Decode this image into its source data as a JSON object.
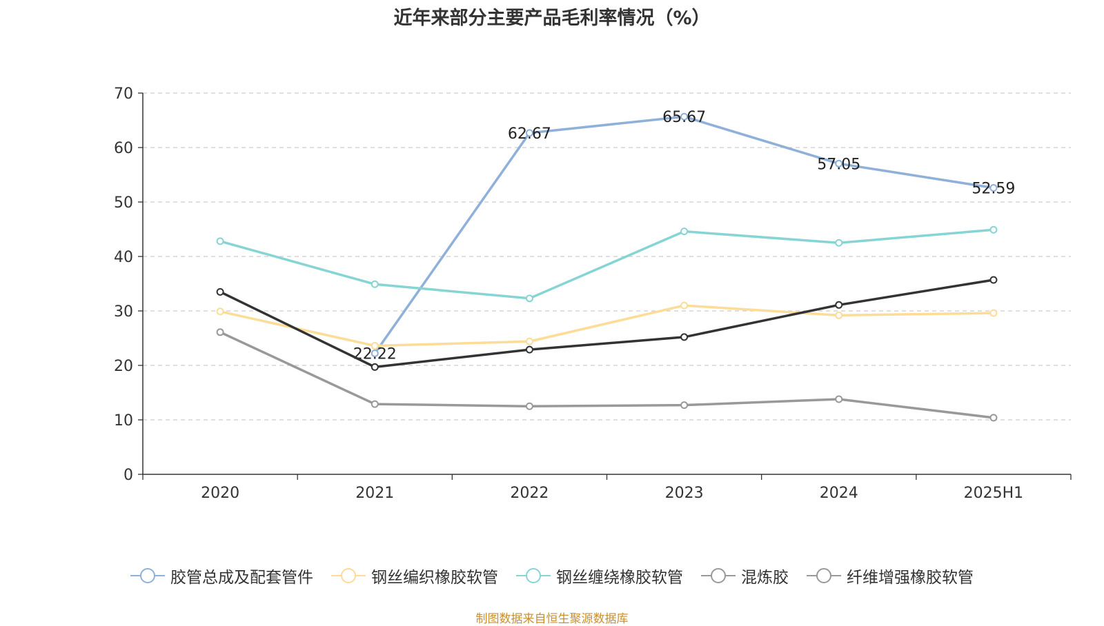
{
  "chart_data": {
    "type": "line",
    "title": "近年来部分主要产品毛利率情况（%）",
    "categories": [
      "2020",
      "2021",
      "2022",
      "2023",
      "2024",
      "2025H1"
    ],
    "ylim": [
      0,
      70
    ],
    "yticks": [
      0,
      10,
      20,
      30,
      40,
      50,
      60,
      70
    ],
    "grid": true,
    "legend_position": "bottom",
    "series": [
      {
        "name": "胶管总成及配套管件",
        "color": "#8fb0d9",
        "legend_marker": "#8fb0d9",
        "values": [
          null,
          22.22,
          62.67,
          65.67,
          57.05,
          52.59
        ],
        "show_labels": true
      },
      {
        "name": "钢丝编织橡胶软管",
        "color": "#fcdc97",
        "legend_marker": "#fcdc97",
        "values": [
          29.9,
          23.6,
          24.4,
          31.0,
          29.2,
          29.6
        ],
        "show_labels": false
      },
      {
        "name": "钢丝缠绕橡胶软管",
        "color": "#86d4d4",
        "legend_marker": "#86d4d4",
        "values": [
          42.8,
          34.9,
          32.3,
          44.6,
          42.5,
          44.9
        ],
        "show_labels": false
      },
      {
        "name": "混炼胶",
        "color": "#333333",
        "legend_marker": "#999999",
        "values": [
          33.5,
          19.7,
          22.9,
          25.2,
          31.1,
          35.7
        ],
        "show_labels": false
      },
      {
        "name": "纤维增强橡胶软管",
        "color": "#999999",
        "legend_marker": "#999999",
        "values": [
          26.1,
          12.9,
          12.5,
          12.7,
          13.8,
          10.4
        ],
        "show_labels": false
      }
    ]
  },
  "source_note": "制图数据来自恒生聚源数据库"
}
